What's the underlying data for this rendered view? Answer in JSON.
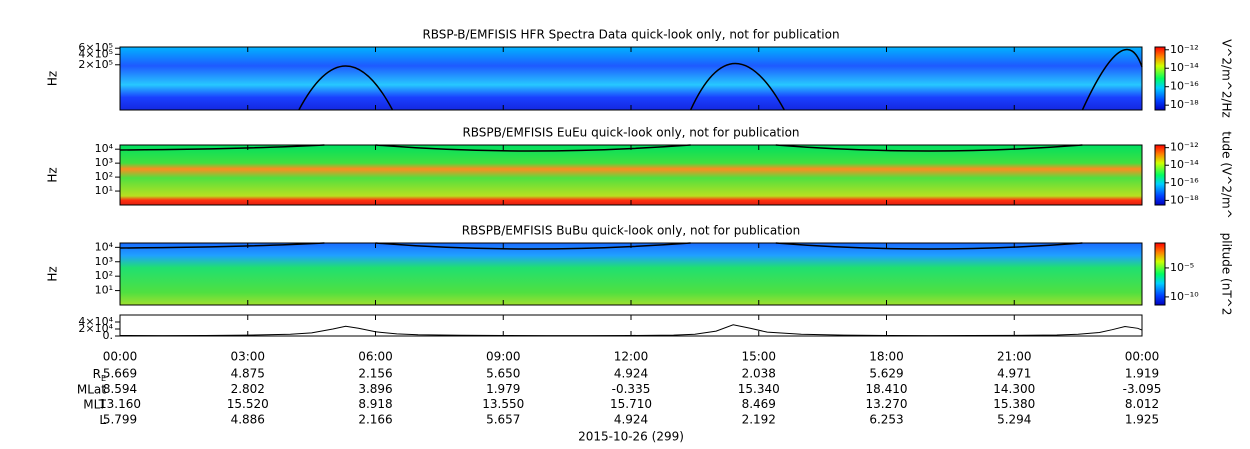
{
  "chart_data": [
    {
      "type": "spectrogram",
      "title": "RBSP-B/EMFISIS  HFR Spectra Data quick-look only, not for publication",
      "y_label": "Hz",
      "log_y": true,
      "ylim": [
        10000,
        650000
      ],
      "yticks": [
        {
          "value": 600000,
          "label": "6×10⁵"
        },
        {
          "value": 400000,
          "label": "4×10⁵"
        },
        {
          "value": 200000,
          "label": "2×10⁵"
        }
      ],
      "colorbar": {
        "label": "V^2/m^2/Hz",
        "lim": [
          3e-19,
          2e-12
        ],
        "ticks": [
          {
            "value": 1e-12,
            "label": "10⁻¹²"
          },
          {
            "value": 1e-14,
            "label": "10⁻¹⁴"
          },
          {
            "value": 1e-16,
            "label": "10⁻¹⁶"
          },
          {
            "value": 1e-18,
            "label": "10⁻¹⁸"
          }
        ]
      }
    },
    {
      "type": "spectrogram",
      "title": "RBSPB/EMFISIS  EuEu quick-look only, not for publication",
      "y_label": "Hz",
      "log_y": true,
      "ylim": [
        1,
        20000
      ],
      "yticks": [
        {
          "value": 10000,
          "label": "10⁴"
        },
        {
          "value": 1000,
          "label": "10³"
        },
        {
          "value": 100,
          "label": "10²"
        },
        {
          "value": 10,
          "label": "10¹"
        }
      ],
      "colorbar": {
        "label": "tude (V^2/m^",
        "lim": [
          3e-19,
          2e-12
        ],
        "ticks": [
          {
            "value": 1e-12,
            "label": "10⁻¹²"
          },
          {
            "value": 1e-14,
            "label": "10⁻¹⁴"
          },
          {
            "value": 1e-16,
            "label": "10⁻¹⁶"
          },
          {
            "value": 1e-18,
            "label": "10⁻¹⁸"
          }
        ]
      }
    },
    {
      "type": "spectrogram",
      "title": "RBSPB/EMFISIS  BuBu quick-look only, not for publication",
      "y_label": "Hz",
      "log_y": true,
      "ylim": [
        1,
        20000
      ],
      "yticks": [
        {
          "value": 10000,
          "label": "10⁴"
        },
        {
          "value": 1000,
          "label": "10³"
        },
        {
          "value": 100,
          "label": "10²"
        },
        {
          "value": 10,
          "label": "10¹"
        }
      ],
      "colorbar": {
        "label": "plitude (nT^2",
        "lim": [
          4e-12,
          0.2
        ],
        "ticks": [
          {
            "value": 1e-05,
            "label": "10⁻⁵"
          },
          {
            "value": 1e-10,
            "label": "10⁻¹⁰"
          }
        ]
      }
    },
    {
      "type": "line",
      "color": "#000000",
      "ylim": [
        0,
        60000
      ],
      "yticks": [
        {
          "value": 40000,
          "label": "4×10⁴"
        },
        {
          "value": 20000,
          "label": "2×10⁴"
        },
        {
          "value": 0,
          "label": "0."
        }
      ],
      "x": [
        0,
        1,
        2,
        3,
        4,
        4.5,
        5,
        5.3,
        5.6,
        6,
        6.5,
        7,
        8,
        9,
        10,
        11,
        12,
        13,
        13.5,
        14,
        14.4,
        14.8,
        15.2,
        16,
        17,
        18,
        19,
        20,
        21,
        22,
        22.5,
        23,
        23.3,
        23.6,
        23.9,
        24
      ],
      "values": [
        1500,
        1200,
        1500,
        2500,
        5000,
        9000,
        20000,
        28000,
        22000,
        12000,
        6000,
        3500,
        2000,
        1300,
        1100,
        1200,
        1500,
        2500,
        5000,
        14000,
        32000,
        22000,
        11000,
        5000,
        2500,
        1500,
        1200,
        1300,
        1800,
        3000,
        5000,
        10000,
        18000,
        27000,
        22000,
        17000
      ]
    }
  ],
  "time_axis": {
    "xlim": [
      0,
      24
    ],
    "xticks": [
      {
        "value": 0,
        "label": "00:00"
      },
      {
        "value": 3,
        "label": "03:00"
      },
      {
        "value": 6,
        "label": "06:00"
      },
      {
        "value": 9,
        "label": "09:00"
      },
      {
        "value": 12,
        "label": "12:00"
      },
      {
        "value": 15,
        "label": "15:00"
      },
      {
        "value": 18,
        "label": "18:00"
      },
      {
        "value": 21,
        "label": "21:00"
      },
      {
        "value": 24,
        "label": "00:00"
      }
    ]
  },
  "ephemeris": {
    "rows": [
      {
        "label": "R",
        "sub": "E",
        "values": [
          "5.669",
          "4.875",
          "2.156",
          "5.650",
          "4.924",
          "2.038",
          "5.629",
          "4.971",
          "1.919"
        ]
      },
      {
        "label": "MLat",
        "values": [
          "8.594",
          "2.802",
          "3.896",
          "1.979",
          "-0.335",
          "15.340",
          "18.410",
          "14.300",
          "-3.095"
        ]
      },
      {
        "label": "MLT",
        "values": [
          "13.160",
          "15.520",
          "8.918",
          "13.550",
          "15.710",
          "8.469",
          "13.270",
          "15.380",
          "8.012"
        ]
      },
      {
        "label": "L",
        "values": [
          "5.799",
          "4.886",
          "2.166",
          "5.657",
          "4.924",
          "2.192",
          "6.253",
          "5.294",
          "1.925"
        ]
      }
    ]
  },
  "date": "2015-10-26 (299)"
}
